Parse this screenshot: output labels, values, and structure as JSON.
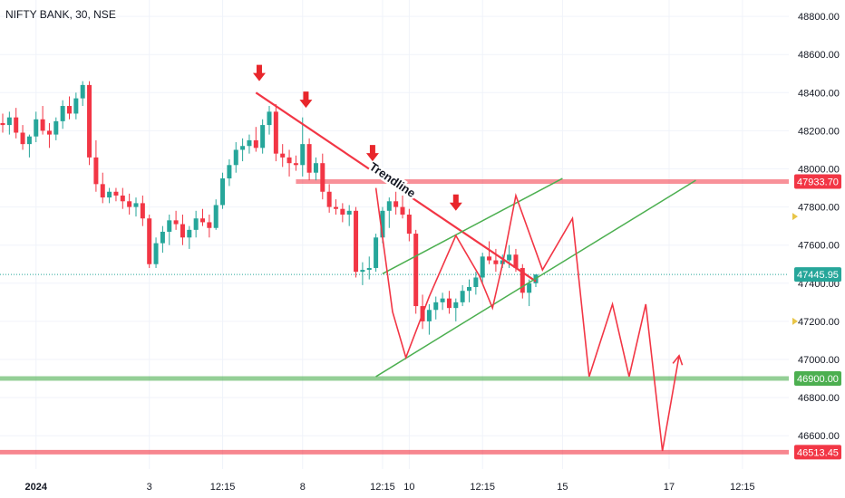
{
  "chart_data": {
    "type": "candlestick",
    "symbol_title": "NIFTY BANK, 30, NSE",
    "y_axis": {
      "min": 46400,
      "max": 48950,
      "ticks": [
        46600,
        46800,
        47000,
        47200,
        47400,
        47600,
        47800,
        48000,
        48200,
        48400,
        48600,
        48800
      ],
      "tick_labels": [
        "46600.00",
        "46800.00",
        "47000.00",
        "47200.00",
        "47400.00",
        "47600.00",
        "47800.00",
        "48000.00",
        "48200.00",
        "48400.00",
        "48600.00",
        "48800.00"
      ]
    },
    "x_axis": {
      "labels": [
        {
          "bar": 5,
          "text": "2024",
          "bold": true
        },
        {
          "bar": 22,
          "text": "3"
        },
        {
          "bar": 33,
          "text": "12:15"
        },
        {
          "bar": 45,
          "text": "8"
        },
        {
          "bar": 57,
          "text": "12:15"
        },
        {
          "bar": 61,
          "text": "10"
        },
        {
          "bar": 72,
          "text": "12:15"
        },
        {
          "bar": 84,
          "text": "15"
        },
        {
          "bar": 100,
          "text": "17"
        },
        {
          "bar": 111,
          "text": "12:15"
        }
      ]
    },
    "candles": [
      [
        48240,
        48290,
        48190,
        48230
      ],
      [
        48230,
        48300,
        48180,
        48270
      ],
      [
        48270,
        48320,
        48160,
        48190
      ],
      [
        48190,
        48230,
        48100,
        48130
      ],
      [
        48130,
        48180,
        48060,
        48170
      ],
      [
        48170,
        48300,
        48140,
        48260
      ],
      [
        48260,
        48330,
        48180,
        48200
      ],
      [
        48200,
        48240,
        48110,
        48180
      ],
      [
        48180,
        48270,
        48150,
        48250
      ],
      [
        48250,
        48360,
        48210,
        48330
      ],
      [
        48330,
        48380,
        48260,
        48290
      ],
      [
        48290,
        48400,
        48260,
        48370
      ],
      [
        48370,
        48460,
        48330,
        48440
      ],
      [
        48440,
        48460,
        48020,
        48060
      ],
      [
        48060,
        48150,
        47880,
        47920
      ],
      [
        47920,
        47980,
        47820,
        47850
      ],
      [
        47850,
        47900,
        47820,
        47880
      ],
      [
        47880,
        47900,
        47830,
        47860
      ],
      [
        47860,
        47900,
        47790,
        47830
      ],
      [
        47830,
        47870,
        47760,
        47800
      ],
      [
        47800,
        47850,
        47750,
        47820
      ],
      [
        47820,
        47860,
        47700,
        47740
      ],
      [
        47740,
        47760,
        47480,
        47500
      ],
      [
        47500,
        47640,
        47480,
        47610
      ],
      [
        47610,
        47700,
        47560,
        47670
      ],
      [
        47670,
        47760,
        47600,
        47730
      ],
      [
        47730,
        47780,
        47680,
        47710
      ],
      [
        47710,
        47760,
        47600,
        47640
      ],
      [
        47640,
        47700,
        47580,
        47680
      ],
      [
        47680,
        47780,
        47640,
        47740
      ],
      [
        47740,
        47790,
        47700,
        47720
      ],
      [
        47720,
        47760,
        47640,
        47690
      ],
      [
        47690,
        47840,
        47680,
        47810
      ],
      [
        47810,
        47980,
        47790,
        47950
      ],
      [
        47950,
        48050,
        47910,
        48020
      ],
      [
        48020,
        48140,
        47980,
        48100
      ],
      [
        48100,
        48160,
        48040,
        48120
      ],
      [
        48120,
        48180,
        48080,
        48150
      ],
      [
        48150,
        48220,
        48090,
        48110
      ],
      [
        48110,
        48260,
        48080,
        48230
      ],
      [
        48230,
        48330,
        48180,
        48300
      ],
      [
        48300,
        48340,
        48040,
        48080
      ],
      [
        48080,
        48130,
        48010,
        48060
      ],
      [
        48060,
        48100,
        47960,
        48030
      ],
      [
        48030,
        48070,
        47990,
        48020
      ],
      [
        48020,
        48270,
        47960,
        48130
      ],
      [
        48130,
        48160,
        47940,
        47980
      ],
      [
        47980,
        48060,
        47940,
        48030
      ],
      [
        48030,
        48080,
        47840,
        47880
      ],
      [
        47880,
        47920,
        47770,
        47800
      ],
      [
        47800,
        47840,
        47760,
        47790
      ],
      [
        47790,
        47820,
        47720,
        47760
      ],
      [
        47760,
        47810,
        47700,
        47780
      ],
      [
        47780,
        47800,
        47430,
        47460
      ],
      [
        47460,
        47510,
        47390,
        47470
      ],
      [
        47470,
        47540,
        47420,
        47480
      ],
      [
        47480,
        47660,
        47460,
        47640
      ],
      [
        47640,
        47800,
        47610,
        47780
      ],
      [
        47780,
        47850,
        47690,
        47830
      ],
      [
        47830,
        47880,
        47760,
        47800
      ],
      [
        47800,
        47860,
        47740,
        47760
      ],
      [
        47760,
        47790,
        47620,
        47660
      ],
      [
        47660,
        47680,
        47240,
        47280
      ],
      [
        47280,
        47340,
        47160,
        47200
      ],
      [
        47200,
        47290,
        47130,
        47260
      ],
      [
        47260,
        47330,
        47210,
        47300
      ],
      [
        47300,
        47350,
        47260,
        47320
      ],
      [
        47320,
        47360,
        47240,
        47270
      ],
      [
        47270,
        47320,
        47200,
        47300
      ],
      [
        47300,
        47390,
        47280,
        47360
      ],
      [
        47360,
        47420,
        47300,
        47380
      ],
      [
        47380,
        47460,
        47340,
        47430
      ],
      [
        47430,
        47560,
        47400,
        47540
      ],
      [
        47540,
        47620,
        47500,
        47520
      ],
      [
        47520,
        47580,
        47460,
        47500
      ],
      [
        47500,
        47550,
        47480,
        47520
      ],
      [
        47520,
        47600,
        47480,
        47550
      ],
      [
        47550,
        47580,
        47460,
        47480
      ],
      [
        47480,
        47500,
        47320,
        47350
      ],
      [
        47350,
        47420,
        47280,
        47400
      ],
      [
        47400,
        47440,
        47380,
        47445.95
      ]
    ],
    "horizontal_levels": [
      {
        "name": "resistance",
        "value": 47933.7,
        "label": "47933.70",
        "color": "#f23645"
      },
      {
        "name": "last-price",
        "value": 47445.95,
        "label": "47445.95",
        "color": "#26a69a",
        "dotted": true
      },
      {
        "name": "support",
        "value": 46900.0,
        "label": "46900.00",
        "color": "#4caf50"
      },
      {
        "name": "target",
        "value": 46513.45,
        "label": "46513.45",
        "color": "#f23645"
      }
    ],
    "annotations": {
      "trendline_text": "Trendline",
      "trendline": [
        [
          38,
          48400
        ],
        [
          80,
          47410
        ]
      ],
      "channel_upper": [
        [
          57,
          47450
        ],
        [
          84,
          47950
        ]
      ],
      "channel_lower": [
        [
          56,
          46910
        ],
        [
          104,
          47940
        ]
      ],
      "arrow_bars": [
        38.5,
        45.5,
        55.5,
        68
      ],
      "arrow_values": [
        48460,
        48320,
        48040,
        47780
      ],
      "projection_path": [
        [
          56,
          47900
        ],
        [
          58.5,
          47250
        ],
        [
          60.5,
          47010
        ],
        [
          64,
          47330
        ],
        [
          68,
          47650
        ],
        [
          71.5,
          47440
        ],
        [
          73.5,
          47270
        ],
        [
          75,
          47500
        ],
        [
          77,
          47860
        ],
        [
          81,
          47470
        ],
        [
          85.5,
          47740
        ],
        [
          88,
          46910
        ],
        [
          91.5,
          47290
        ],
        [
          94,
          46910
        ],
        [
          96.5,
          47290
        ],
        [
          99,
          46520
        ],
        [
          101.5,
          47020
        ]
      ]
    },
    "colors": {
      "bull": "#26a69a",
      "bear": "#f23645",
      "grid": "#f0f3fa",
      "axis_text": "#131722",
      "trendline": "#f23645",
      "channel": "#4caf50",
      "projection": "#f23645"
    }
  }
}
